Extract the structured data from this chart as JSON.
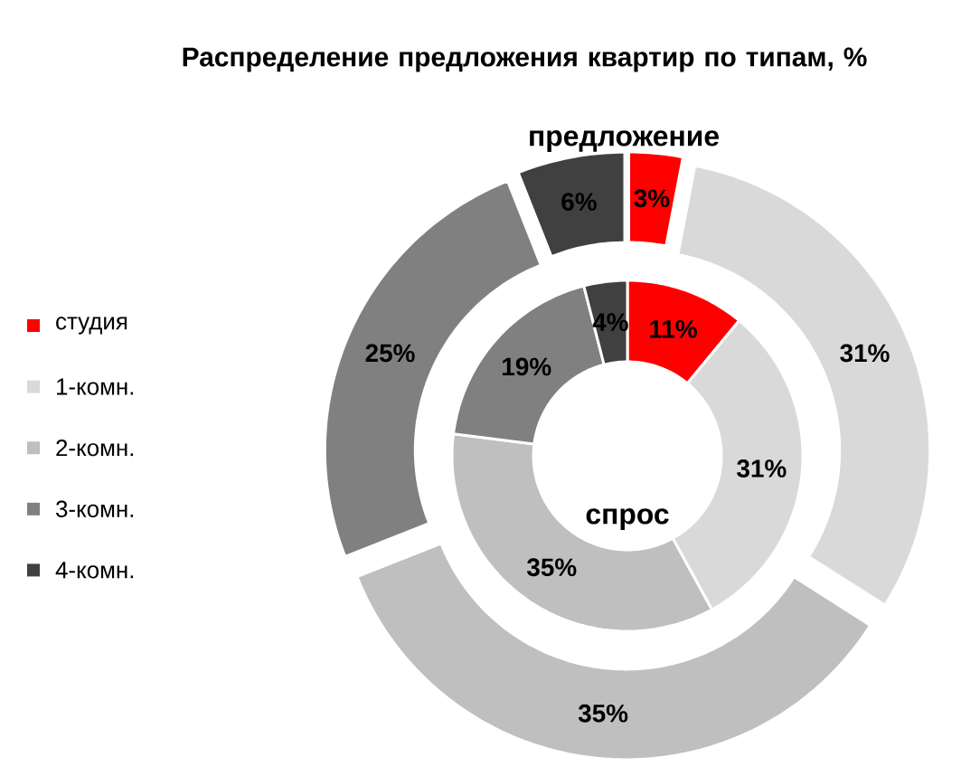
{
  "chart_data": {
    "type": "donut",
    "title": "Распределение предложения квартир по типам, %",
    "categories": [
      "студия",
      "1-комн.",
      "2-комн.",
      "3-комн.",
      "4-комн."
    ],
    "colors": [
      "#ff0000",
      "#d9d9d9",
      "#bfbfbf",
      "#808080",
      "#404040"
    ],
    "series": [
      {
        "name": "предложение",
        "values": [
          3,
          31,
          35,
          25,
          6
        ],
        "value_labels": [
          "3%",
          "31%",
          "35%",
          "25%",
          "6%"
        ]
      },
      {
        "name": "спрос",
        "values": [
          11,
          31,
          35,
          19,
          4
        ],
        "value_labels": [
          "11%",
          "31%",
          "35%",
          "19%",
          "4%"
        ]
      }
    ],
    "legend": "left"
  }
}
